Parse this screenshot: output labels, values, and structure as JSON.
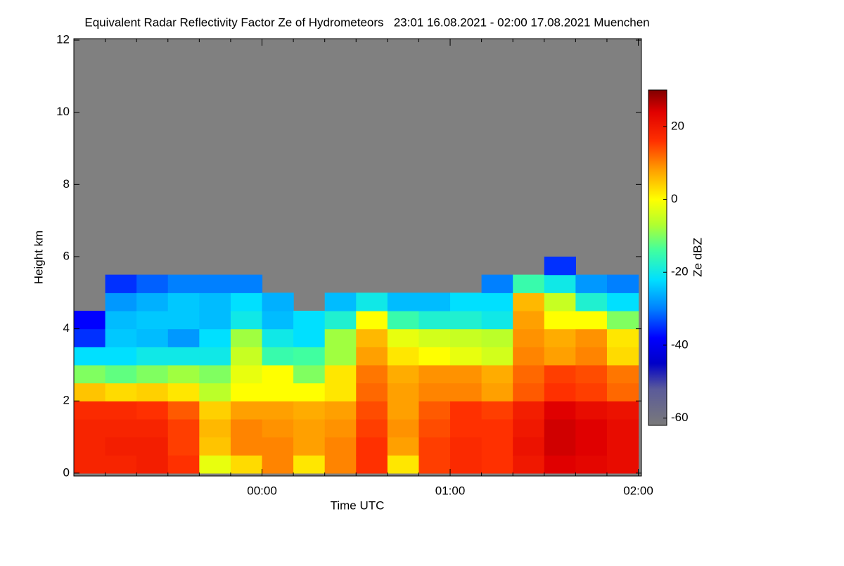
{
  "chart_data": {
    "type": "heatmap",
    "title": "Equivalent Radar Reflectivity Factor Ze of Hydrometeors   23:01 16.08.2021 - 02:00 17.08.2021 Muenchen",
    "x_label": "Time UTC",
    "y_label": "Height km",
    "colorbar_label": "Ze dBZ",
    "xlim": [
      0,
      181
    ],
    "ylim": [
      -0.08,
      12.04
    ],
    "xticks": [
      {
        "value": 60,
        "label": "00:00"
      },
      {
        "value": 120,
        "label": "01:00"
      },
      {
        "value": 180,
        "label": "02:00"
      }
    ],
    "xminorticks": [
      10,
      20,
      30,
      40,
      50,
      70,
      80,
      90,
      100,
      110,
      130,
      140,
      150,
      160,
      170
    ],
    "yticks": [
      0,
      2,
      4,
      6,
      8,
      10,
      12
    ],
    "x_edges": [
      0,
      10,
      20,
      30,
      40,
      50,
      60,
      70,
      80,
      90,
      100,
      110,
      120,
      130,
      140,
      150,
      160,
      170,
      180
    ],
    "y_edges": [
      0,
      0.5,
      1,
      1.5,
      2,
      2.5,
      3,
      3.5,
      4,
      4.5,
      5,
      5.5,
      6
    ],
    "z": [
      [
        18,
        18,
        18,
        17,
        5,
        -10,
        -22,
        -35,
        -38,
        null,
        null,
        null
      ],
      [
        18,
        19,
        18,
        17,
        3,
        -12,
        -22,
        -24,
        -25,
        -28,
        -35,
        null
      ],
      [
        19,
        19,
        18,
        16,
        4,
        -10,
        -20,
        -25,
        -24,
        -26,
        -32,
        null
      ],
      [
        16,
        15,
        15,
        13,
        2,
        -8,
        -20,
        -28,
        -24,
        -24,
        -30,
        null
      ],
      [
        -2,
        5,
        6,
        4,
        -6,
        -10,
        -20,
        -22,
        -25,
        -25,
        -30,
        null
      ],
      [
        3,
        10,
        10,
        8,
        0,
        -2,
        -5,
        -8,
        -20,
        -22,
        -30,
        null
      ],
      [
        10,
        10,
        9,
        8,
        0,
        0,
        -15,
        -20,
        -25,
        -26,
        null,
        null
      ],
      [
        2,
        8,
        8,
        7,
        0,
        -10,
        -14,
        -22,
        -22,
        null,
        null,
        null
      ],
      [
        10,
        10,
        9,
        8,
        2,
        2,
        -8,
        -8,
        -18,
        -25,
        null,
        null
      ],
      [
        16,
        16,
        15,
        14,
        12,
        11,
        8,
        6,
        0,
        -20,
        null,
        null
      ],
      [
        2,
        8,
        9,
        8,
        8,
        7,
        2,
        -2,
        -15,
        -25,
        null,
        null
      ],
      [
        15,
        15,
        14,
        13,
        10,
        9,
        0,
        -4,
        -18,
        -25,
        null,
        null
      ],
      [
        17,
        17,
        16,
        16,
        10,
        9,
        -2,
        -5,
        -18,
        -22,
        null,
        null
      ],
      [
        16,
        16,
        16,
        15,
        8,
        7,
        -4,
        -6,
        -20,
        -22,
        -30,
        null
      ],
      [
        20,
        21,
        20,
        19,
        13,
        12,
        10,
        9,
        8,
        6,
        -15,
        null
      ],
      [
        24,
        25,
        25,
        24,
        16,
        15,
        8,
        7,
        0,
        -5,
        -20,
        -35
      ],
      [
        23,
        24,
        24,
        22,
        15,
        14,
        10,
        9,
        0,
        -18,
        -28,
        null
      ],
      [
        22,
        22,
        22,
        21,
        12,
        11,
        3,
        2,
        -10,
        -22,
        -30,
        null
      ]
    ],
    "zlim": [
      -62,
      30
    ],
    "zticks": [
      -60,
      -40,
      -20,
      0,
      20
    ],
    "missing_color": "#808080",
    "colorscale": [
      [
        -62,
        "#7a7a7a"
      ],
      [
        -52,
        "#5a5a9a"
      ],
      [
        -45,
        "#0000c8"
      ],
      [
        -38,
        "#0000ff"
      ],
      [
        -30,
        "#0080ff"
      ],
      [
        -22,
        "#00e0ff"
      ],
      [
        -14,
        "#40ffa0"
      ],
      [
        -7,
        "#b0ff30"
      ],
      [
        0,
        "#ffff00"
      ],
      [
        8,
        "#ffa000"
      ],
      [
        16,
        "#ff3000"
      ],
      [
        24,
        "#e00000"
      ],
      [
        30,
        "#800000"
      ]
    ]
  }
}
